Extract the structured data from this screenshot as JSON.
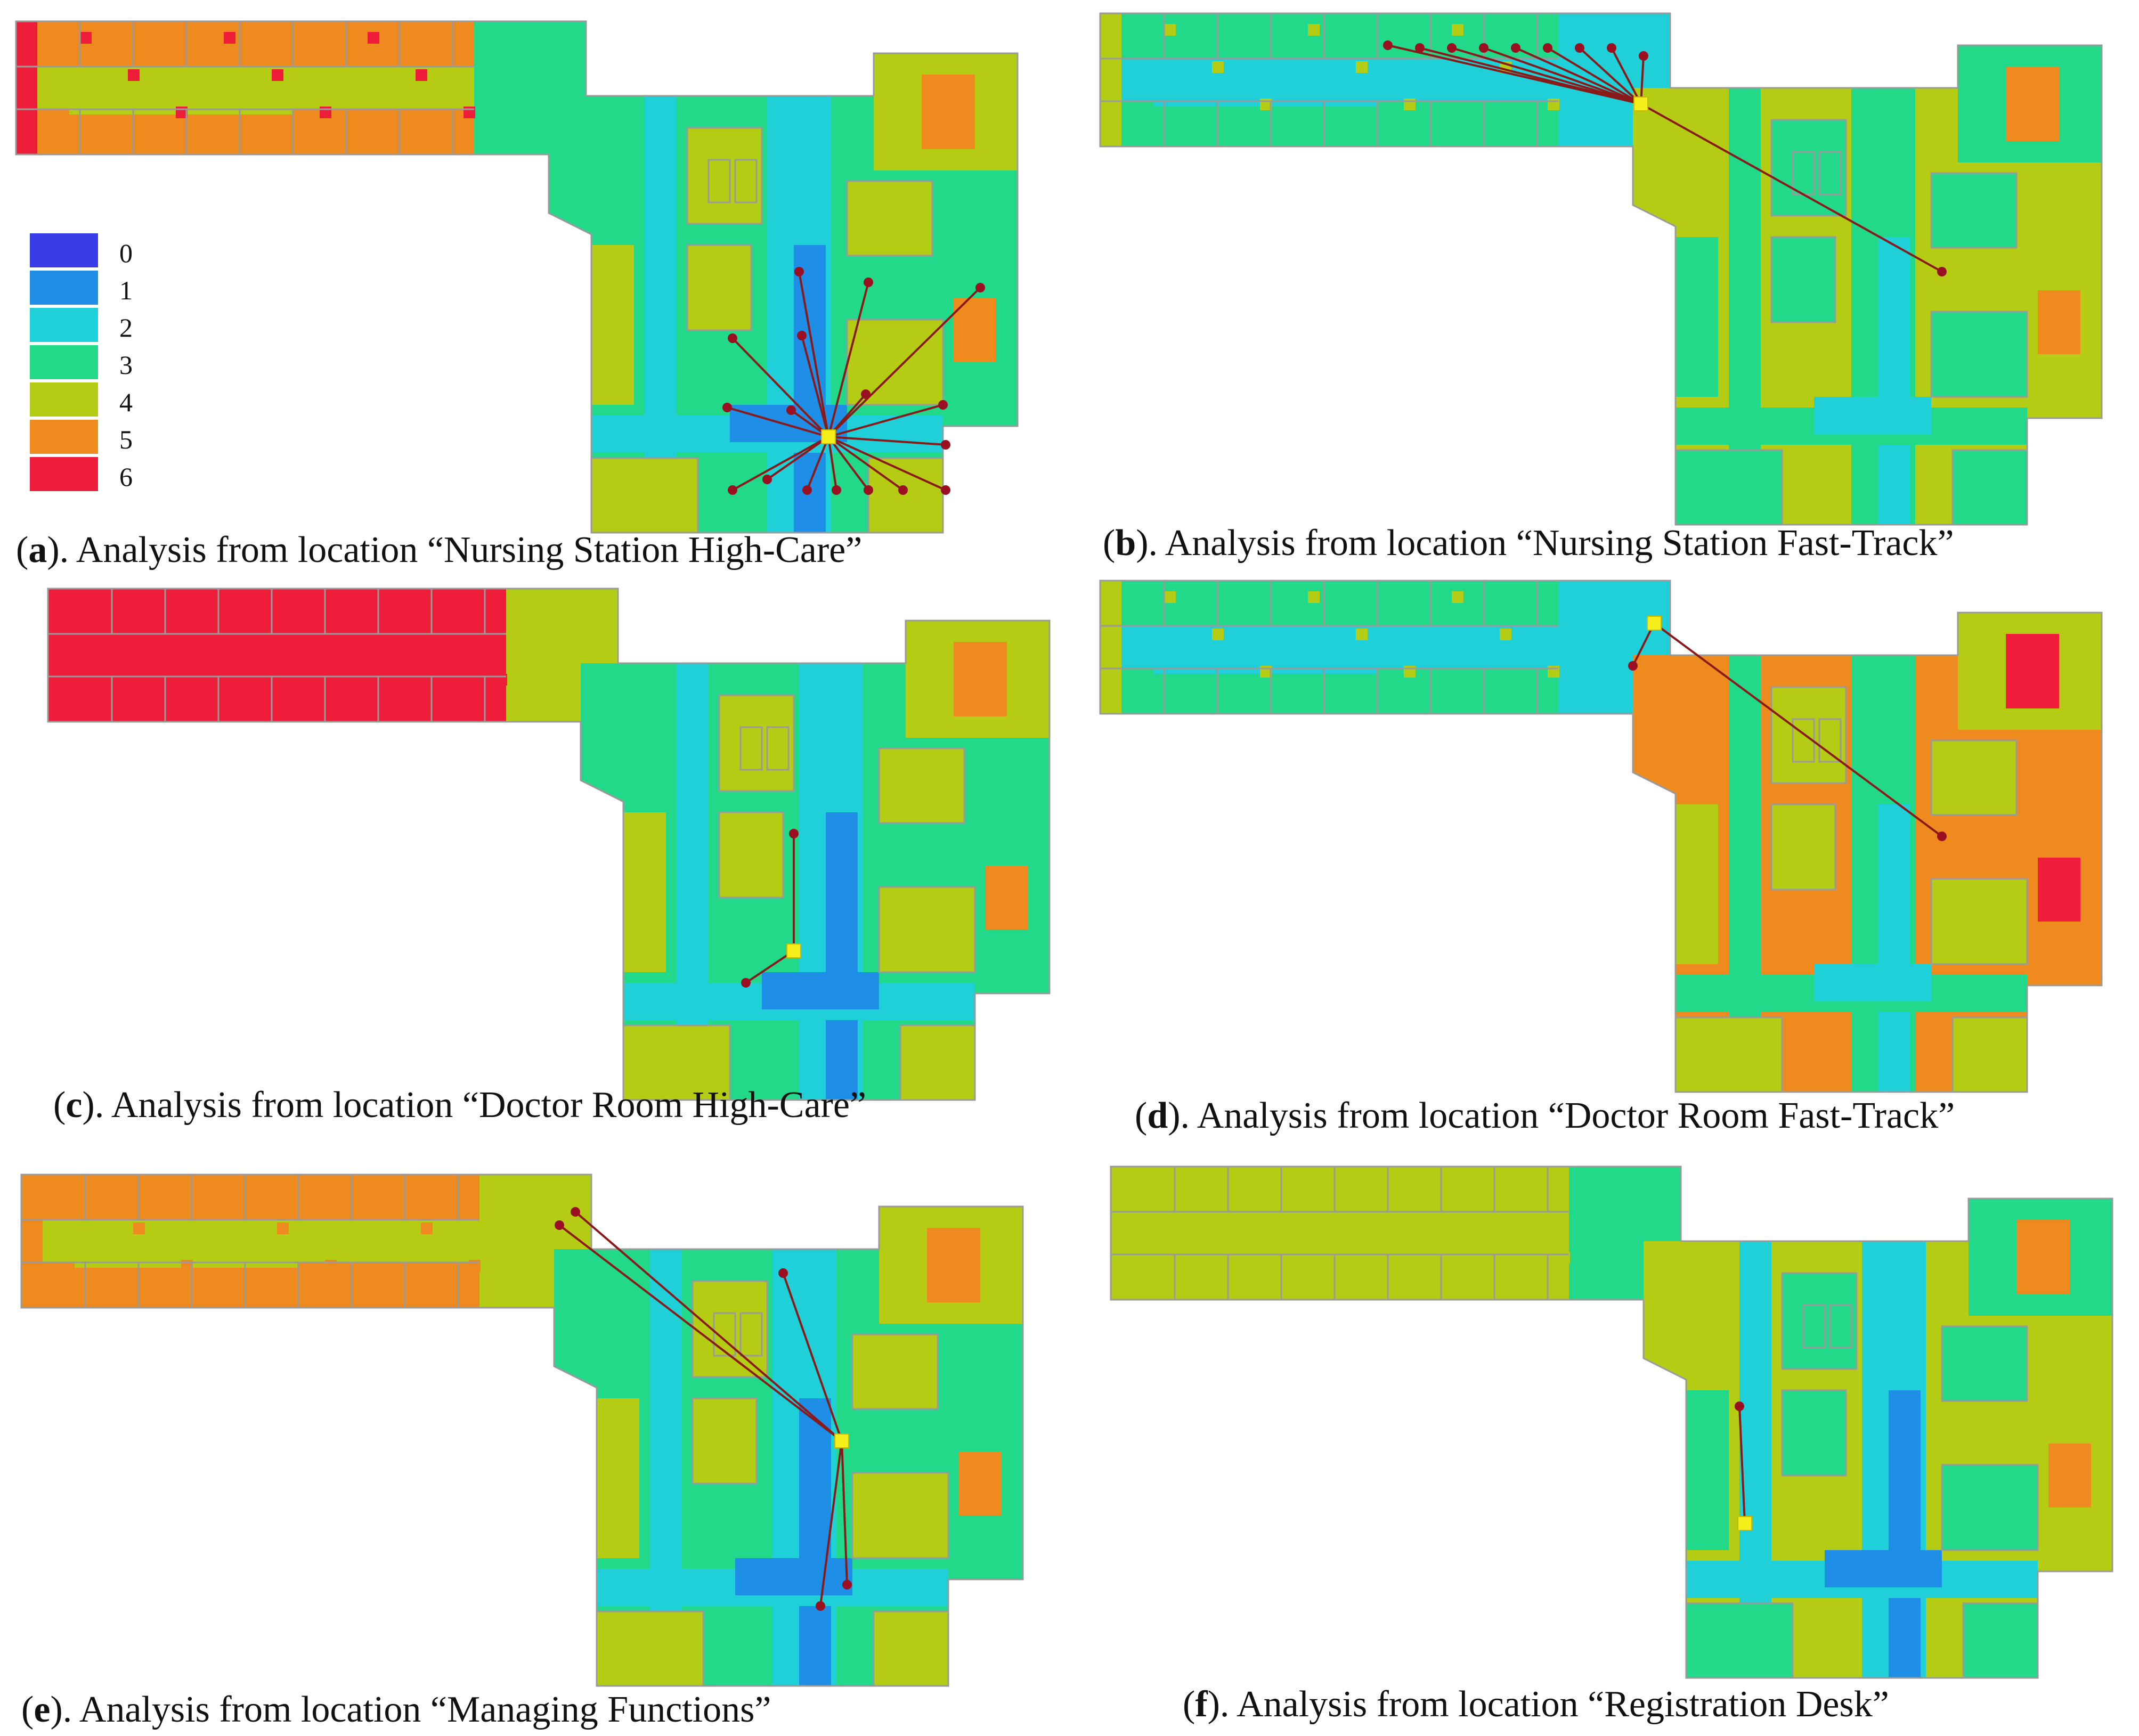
{
  "legend": {
    "items": [
      {
        "label": "0",
        "color": "#3a3ce8"
      },
      {
        "label": "1",
        "color": "#1e8ee6"
      },
      {
        "label": "2",
        "color": "#1fd0d8"
      },
      {
        "label": "3",
        "color": "#22d889"
      },
      {
        "label": "4",
        "color": "#b4cc14"
      },
      {
        "label": "5",
        "color": "#ee8a1e"
      },
      {
        "label": "6",
        "color": "#ee1e3a"
      }
    ]
  },
  "panels": [
    {
      "id": "a",
      "letter": "a",
      "caption_text": "). Analysis from location “Nursing Station High-Care”"
    },
    {
      "id": "b",
      "letter": "b",
      "caption_text": "). Analysis from location “Nursing Station Fast-Track”"
    },
    {
      "id": "c",
      "letter": "c",
      "caption_text": "). Analysis from location “Doctor Room High-Care”"
    },
    {
      "id": "d",
      "letter": "d",
      "caption_text": "). Analysis from location “Doctor Room Fast-Track”"
    },
    {
      "id": "e",
      "letter": "e",
      "caption_text": "). Analysis from location “Managing Functions”"
    },
    {
      "id": "f",
      "letter": "f",
      "caption_text": "). Analysis from location “Registration Desk”"
    }
  ],
  "colors": {
    "origin_marker": "#f5ee1a",
    "target_marker": "#9a1020",
    "ray_line": "#8a1a1a",
    "wall_lines": "#9a9a9a"
  }
}
